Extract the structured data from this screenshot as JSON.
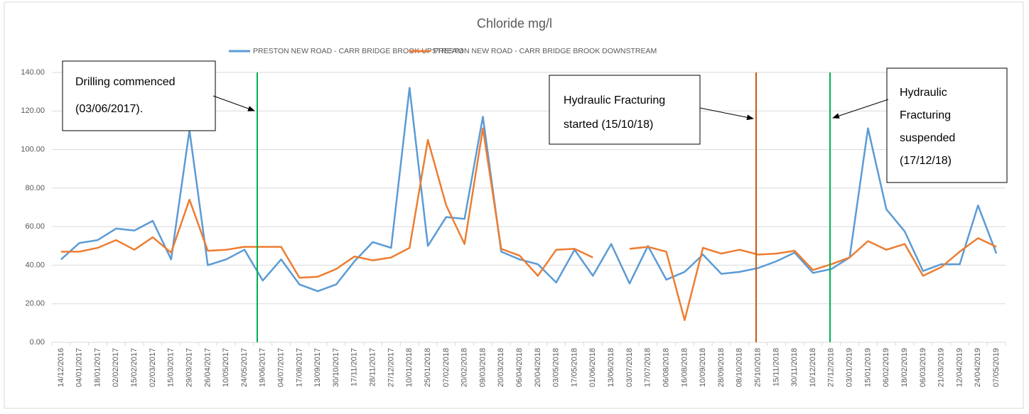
{
  "chart_data": {
    "type": "line",
    "title": "Chloride mg/l",
    "categories": [
      "14/12/2016",
      "04/01/2017",
      "18/01/2017",
      "02/02/2017",
      "15/02/2017",
      "02/03/2017",
      "15/03/2017",
      "29/03/2017",
      "26/04/2017",
      "10/05/2017",
      "24/05/2017",
      "19/06/2017",
      "04/07/2017",
      "17/08/2017",
      "13/09/2017",
      "30/10/2017",
      "17/11/2017",
      "28/11/2017",
      "27/12/2017",
      "10/01/2018",
      "25/01/2018",
      "07/02/2018",
      "20/02/2018",
      "09/03/2018",
      "20/03/2018",
      "06/04/2018",
      "20/04/2018",
      "03/05/2018",
      "17/05/2018",
      "01/06/2018",
      "13/06/2018",
      "03/07/2018",
      "17/07/2018",
      "06/08/2018",
      "16/08/2018",
      "10/09/2018",
      "28/09/2018",
      "08/10/2018",
      "25/10/2018",
      "15/11/2018",
      "30/11/2018",
      "10/12/2018",
      "27/12/2018",
      "03/01/2019",
      "15/01/2019",
      "06/02/2019",
      "18/02/2019",
      "06/03/2019",
      "21/03/2019",
      "12/04/2019",
      "24/04/2019",
      "07/05/2019"
    ],
    "series": [
      {
        "name": "PRESTON NEW ROAD - CARR BRIDGE BROOK UPSTREAM",
        "color": "#5b9bd5",
        "values": [
          43,
          51.5,
          53,
          59,
          58,
          63,
          43,
          110,
          40,
          43,
          48,
          32,
          43,
          30,
          26.5,
          30,
          42,
          52,
          49,
          132,
          50,
          65,
          64,
          117,
          47,
          43,
          40.5,
          31,
          48,
          34.5,
          51,
          30.5,
          50,
          32.5,
          36.5,
          45.5,
          35.5,
          36.5,
          38.5,
          42,
          46.5,
          36,
          38,
          44,
          111,
          69,
          57.5,
          37,
          40.5,
          40.5,
          71,
          46
        ]
      },
      {
        "name": "PRESTON NEW ROAD - CARR BRIDGE BROOK DOWNSTREAM",
        "color": "#ed7d31",
        "values": [
          47,
          47,
          49,
          53,
          48,
          54.5,
          46.5,
          74,
          47.5,
          48,
          49.5,
          49.5,
          49.5,
          33.5,
          34,
          38,
          44.5,
          42.5,
          44,
          49,
          105,
          71,
          51,
          111,
          48.5,
          45,
          34.5,
          48,
          48.5,
          44,
          null,
          48.5,
          49.5,
          47,
          11.5,
          49,
          46,
          48,
          45.5,
          46,
          47.5,
          37.5,
          40.5,
          44,
          52.5,
          48,
          51,
          34.5,
          39,
          47,
          54,
          49.5
        ]
      }
    ],
    "ylim": [
      0,
      140
    ],
    "yticks": [
      {
        "value": 0,
        "label": "0.00"
      },
      {
        "value": 20,
        "label": "20.00"
      },
      {
        "value": 40,
        "label": "40.00"
      },
      {
        "value": 60,
        "label": "60.00"
      },
      {
        "value": 80,
        "label": "80.00"
      },
      {
        "value": 100,
        "label": "100.00"
      },
      {
        "value": 120,
        "label": "120.00"
      },
      {
        "value": 140,
        "label": "140.00"
      }
    ],
    "grid": true,
    "legend": "top",
    "annotations": [
      {
        "lines": [
          "Drilling commenced",
          "(03/06/2017)."
        ]
      },
      {
        "lines": [
          "Hydraulic Fracturing",
          "started (15/10/18)"
        ]
      },
      {
        "lines": [
          "Hydraulic",
          "Fracturing",
          "suspended",
          "(17/12/18)"
        ]
      }
    ]
  }
}
